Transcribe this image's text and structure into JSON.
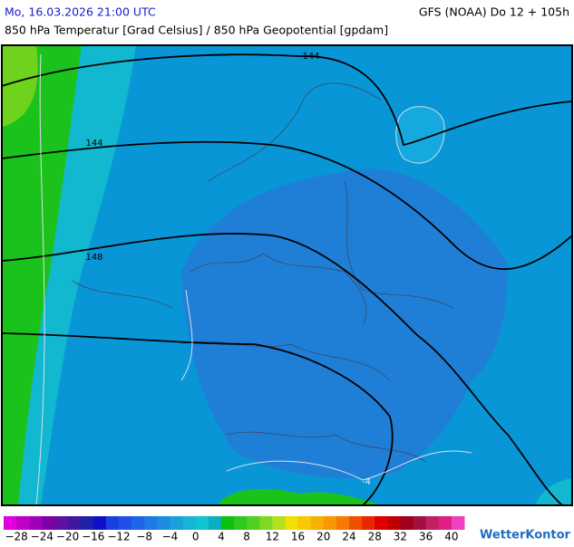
{
  "header": {
    "datetime": "Mo, 16.03.2026 21:00 UTC",
    "model": "GFS (NOAA) Do 12 + 105h",
    "title": "850 hPa Temperatur [Grad Celsius] / 850 hPa Geopotential [gpdam]"
  },
  "map": {
    "contour_labels": [
      "144",
      "144",
      "148",
      "-4"
    ]
  },
  "colorbar": {
    "ticks": [
      "−28",
      "−24",
      "−20",
      "−16",
      "−12",
      "−8",
      "−4",
      "0",
      "4",
      "8",
      "12",
      "16",
      "20",
      "24",
      "28",
      "32",
      "36",
      "40"
    ]
  },
  "logo": "WetterKontor"
}
